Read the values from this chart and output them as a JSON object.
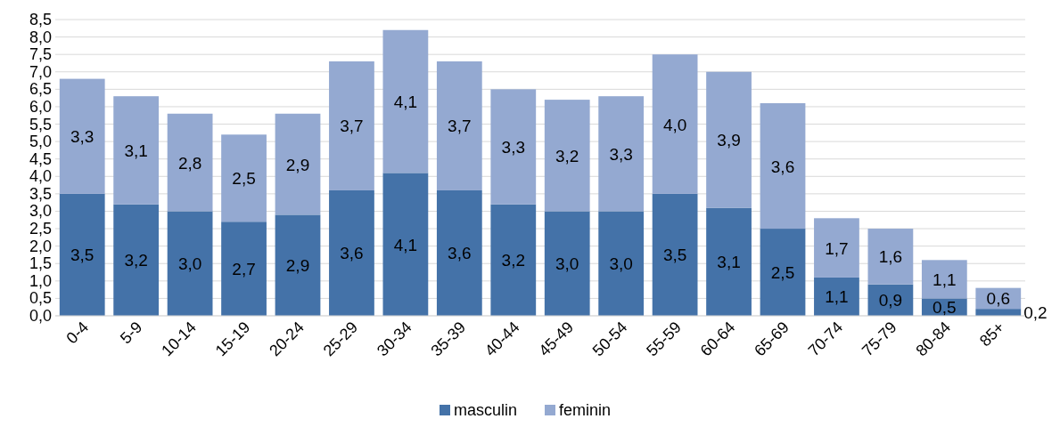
{
  "chart_data": {
    "type": "bar",
    "stacked": true,
    "categories": [
      "0-4",
      "5-9",
      "10-14",
      "15-19",
      "20-24",
      "25-29",
      "30-34",
      "35-39",
      "40-44",
      "45-49",
      "50-54",
      "55-59",
      "60-64",
      "65-69",
      "70-74",
      "75-79",
      "80-84",
      "85+"
    ],
    "series": [
      {
        "name": "masculin",
        "color": "#4472a8",
        "values": [
          3.5,
          3.2,
          3.0,
          2.7,
          2.9,
          3.6,
          4.1,
          3.6,
          3.2,
          3.0,
          3.0,
          3.5,
          3.1,
          2.5,
          1.1,
          0.9,
          0.5,
          0.2
        ],
        "value_labels": [
          "3,5",
          "3,2",
          "3,0",
          "2,7",
          "2,9",
          "3,6",
          "4,1",
          "3,6",
          "3,2",
          "3,0",
          "3,0",
          "3,5",
          "3,1",
          "2,5",
          "1,1",
          "0,9",
          "0,5",
          "0,2"
        ]
      },
      {
        "name": "feminin",
        "color": "#94a9d1",
        "values": [
          3.3,
          3.1,
          2.8,
          2.5,
          2.9,
          3.7,
          4.1,
          3.7,
          3.3,
          3.2,
          3.3,
          4.0,
          3.9,
          3.6,
          1.7,
          1.6,
          1.1,
          0.6
        ],
        "value_labels": [
          "3,3",
          "3,1",
          "2,8",
          "2,5",
          "2,9",
          "3,7",
          "4,1",
          "3,7",
          "3,3",
          "3,2",
          "3,3",
          "4,0",
          "3,9",
          "3,6",
          "1,7",
          "1,6",
          "1,1",
          "0,6"
        ]
      }
    ],
    "ylim": [
      0,
      8.5
    ],
    "yticks": [
      {
        "value": 0,
        "label": "0,0"
      },
      {
        "value": 0.5,
        "label": "0,5"
      },
      {
        "value": 1,
        "label": "1,0"
      },
      {
        "value": 1.5,
        "label": "1,5"
      },
      {
        "value": 2,
        "label": "2,0"
      },
      {
        "value": 2.5,
        "label": "2,5"
      },
      {
        "value": 3,
        "label": "3,0"
      },
      {
        "value": 3.5,
        "label": "3,5"
      },
      {
        "value": 4,
        "label": "4,0"
      },
      {
        "value": 4.5,
        "label": "4,5"
      },
      {
        "value": 5,
        "label": "5,0"
      },
      {
        "value": 5.5,
        "label": "5,5"
      },
      {
        "value": 6,
        "label": "6,0"
      },
      {
        "value": 6.5,
        "label": "6,5"
      },
      {
        "value": 7,
        "label": "7,0"
      },
      {
        "value": 7.5,
        "label": "7,5"
      },
      {
        "value": 8,
        "label": "8,0"
      },
      {
        "value": 8.5,
        "label": "8,5"
      }
    ],
    "grid": "y",
    "legend": "bottom"
  }
}
